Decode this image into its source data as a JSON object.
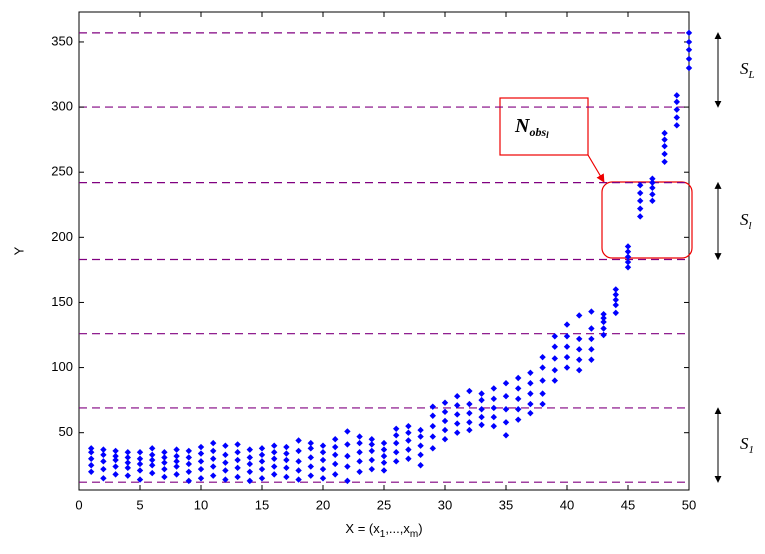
{
  "chart_data": {
    "type": "scatter",
    "color": "#0000ff",
    "hline_color": "#800080",
    "xlabel": [
      "X = (x",
      "1",
      ",...,x",
      "m",
      ")"
    ],
    "ylabel": "Y",
    "xlim": [
      0,
      50
    ],
    "xticks": [
      0,
      5,
      10,
      15,
      20,
      25,
      30,
      35,
      40,
      45,
      50
    ],
    "ylim": [
      6,
      373
    ],
    "yticks": [
      50,
      100,
      150,
      200,
      250,
      300,
      350
    ],
    "hlines": [
      12,
      69,
      126,
      183,
      242,
      300,
      357
    ],
    "brackets": [
      {
        "from": 357,
        "to": 300,
        "label": "S",
        "sub": "L"
      },
      {
        "from": 242,
        "to": 183,
        "label": "S",
        "sub": "l"
      },
      {
        "from": 69,
        "to": 12,
        "label": "S",
        "sub": "1"
      }
    ],
    "annotation": {
      "text": "N",
      "sub": "obs",
      "subsub": "l"
    },
    "x": [
      1,
      1,
      1,
      1,
      1,
      2,
      2,
      2,
      2,
      2,
      3,
      3,
      3,
      3,
      3,
      4,
      4,
      4,
      4,
      4,
      5,
      5,
      5,
      5,
      5,
      6,
      6,
      6,
      6,
      6,
      7,
      7,
      7,
      7,
      7,
      8,
      8,
      8,
      8,
      8,
      9,
      9,
      9,
      9,
      9,
      10,
      10,
      10,
      10,
      10,
      11,
      11,
      11,
      11,
      11,
      12,
      12,
      12,
      12,
      12,
      13,
      13,
      13,
      13,
      13,
      14,
      14,
      14,
      14,
      14,
      15,
      15,
      15,
      15,
      15,
      16,
      16,
      16,
      16,
      16,
      17,
      17,
      17,
      17,
      17,
      18,
      18,
      18,
      18,
      18,
      19,
      19,
      19,
      19,
      19,
      20,
      20,
      20,
      20,
      20,
      21,
      21,
      21,
      21,
      21,
      22,
      22,
      22,
      22,
      22,
      23,
      23,
      23,
      23,
      23,
      24,
      24,
      24,
      24,
      24,
      25,
      25,
      25,
      25,
      25,
      26,
      26,
      26,
      26,
      26,
      27,
      27,
      27,
      27,
      27,
      28,
      28,
      28,
      28,
      28,
      29,
      29,
      29,
      29,
      29,
      30,
      30,
      30,
      30,
      30,
      31,
      31,
      31,
      31,
      31,
      32,
      32,
      32,
      32,
      32,
      33,
      33,
      33,
      33,
      33,
      34,
      34,
      34,
      34,
      34,
      35,
      35,
      35,
      35,
      35,
      36,
      36,
      36,
      36,
      36,
      37,
      37,
      37,
      37,
      37,
      38,
      38,
      38,
      38,
      38,
      39,
      39,
      39,
      39,
      39,
      40,
      40,
      40,
      40,
      40,
      41,
      41,
      41,
      41,
      41,
      42,
      42,
      42,
      42,
      42,
      43,
      43,
      43,
      43,
      43,
      44,
      44,
      44,
      44,
      44,
      45,
      45,
      45,
      45,
      45,
      46,
      46,
      46,
      46,
      46,
      47,
      47,
      47,
      47,
      47,
      48,
      48,
      48,
      48,
      48,
      49,
      49,
      49,
      49,
      49,
      50,
      50,
      50,
      50,
      50
    ],
    "values": [
      20,
      25,
      30,
      35,
      38,
      15,
      22,
      28,
      33,
      37,
      18,
      24,
      29,
      32,
      36,
      17,
      23,
      27,
      31,
      35,
      14,
      21,
      26,
      30,
      35,
      19,
      25,
      29,
      33,
      38,
      16,
      22,
      27,
      31,
      35,
      18,
      24,
      28,
      32,
      37,
      13,
      20,
      26,
      31,
      36,
      15,
      22,
      28,
      34,
      39,
      17,
      24,
      30,
      36,
      42,
      14,
      21,
      27,
      33,
      40,
      16,
      23,
      29,
      35,
      41,
      13,
      20,
      26,
      31,
      37,
      15,
      22,
      28,
      33,
      38,
      18,
      24,
      30,
      35,
      40,
      16,
      23,
      29,
      34,
      39,
      14,
      21,
      28,
      36,
      44,
      17,
      24,
      31,
      38,
      42,
      15,
      22,
      29,
      35,
      40,
      18,
      26,
      33,
      39,
      45,
      13,
      24,
      32,
      41,
      51,
      20,
      28,
      35,
      42,
      47,
      22,
      29,
      36,
      41,
      45,
      21,
      27,
      32,
      37,
      42,
      28,
      35,
      42,
      48,
      53,
      30,
      37,
      44,
      50,
      55,
      25,
      33,
      40,
      47,
      52,
      38,
      47,
      55,
      63,
      70,
      45,
      52,
      59,
      66,
      73,
      50,
      57,
      64,
      71,
      78,
      52,
      58,
      65,
      72,
      82,
      56,
      62,
      68,
      75,
      80,
      55,
      62,
      69,
      76,
      84,
      48,
      58,
      68,
      78,
      88,
      60,
      68,
      76,
      84,
      92,
      65,
      72,
      80,
      88,
      96,
      72,
      80,
      90,
      100,
      108,
      90,
      98,
      107,
      116,
      124,
      100,
      108,
      116,
      124,
      133,
      98,
      106,
      114,
      122,
      140,
      106,
      114,
      122,
      130,
      143,
      125,
      130,
      135,
      138,
      141,
      142,
      148,
      152,
      156,
      160,
      177,
      181,
      185,
      189,
      193,
      216,
      222,
      228,
      234,
      240,
      228,
      233,
      238,
      242,
      245,
      258,
      264,
      270,
      275,
      280,
      286,
      292,
      298,
      304,
      309,
      330,
      337,
      344,
      350,
      357
    ]
  }
}
